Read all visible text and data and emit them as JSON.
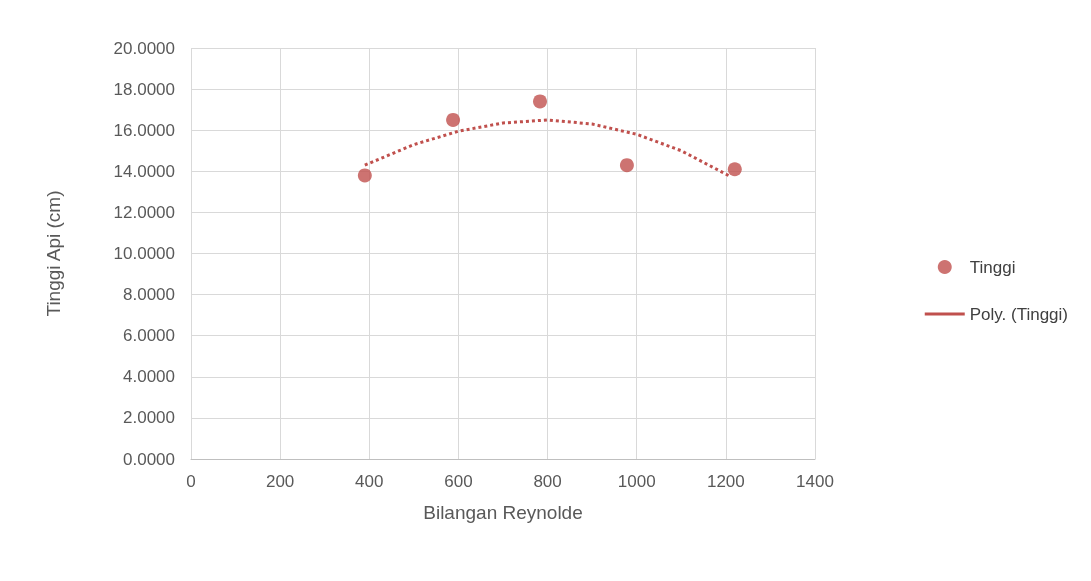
{
  "chart_data": {
    "type": "scatter",
    "xlabel": "Bilangan Reynolde",
    "ylabel": "Tinggi Api (cm)",
    "series": [
      {
        "name": "Tinggi",
        "color": "#c0504d",
        "marker": "circle",
        "x": [
          390,
          588,
          783,
          978,
          1220
        ],
        "values": [
          13.8,
          16.5,
          17.4,
          14.3,
          14.1
        ]
      },
      {
        "name": "Poly. (Tinggi)",
        "type": "line",
        "color": "#c0504d",
        "line_style": "dotted",
        "marker": "none",
        "x": [
          390,
          500,
          600,
          700,
          800,
          900,
          1000,
          1100,
          1210
        ],
        "values": [
          14.3,
          15.3,
          15.95,
          16.35,
          16.5,
          16.3,
          15.8,
          15.0,
          13.75
        ]
      }
    ],
    "xlim": [
      0,
      1400
    ],
    "xticks": [
      0,
      200,
      400,
      600,
      800,
      1000,
      1200,
      1400
    ],
    "ylim": [
      0,
      20
    ],
    "yticks": [
      {
        "value": 0,
        "label": "0.0000"
      },
      {
        "value": 2,
        "label": "2.0000"
      },
      {
        "value": 4,
        "label": "4.0000"
      },
      {
        "value": 6,
        "label": "6.0000"
      },
      {
        "value": 8,
        "label": "8.0000"
      },
      {
        "value": 10,
        "label": "10.0000"
      },
      {
        "value": 12,
        "label": "12.0000"
      },
      {
        "value": 14,
        "label": "14.0000"
      },
      {
        "value": 16,
        "label": "16.0000"
      },
      {
        "value": 18,
        "label": "18.0000"
      },
      {
        "value": 20,
        "label": "20.0000"
      }
    ],
    "grid": true,
    "legend": "right"
  }
}
